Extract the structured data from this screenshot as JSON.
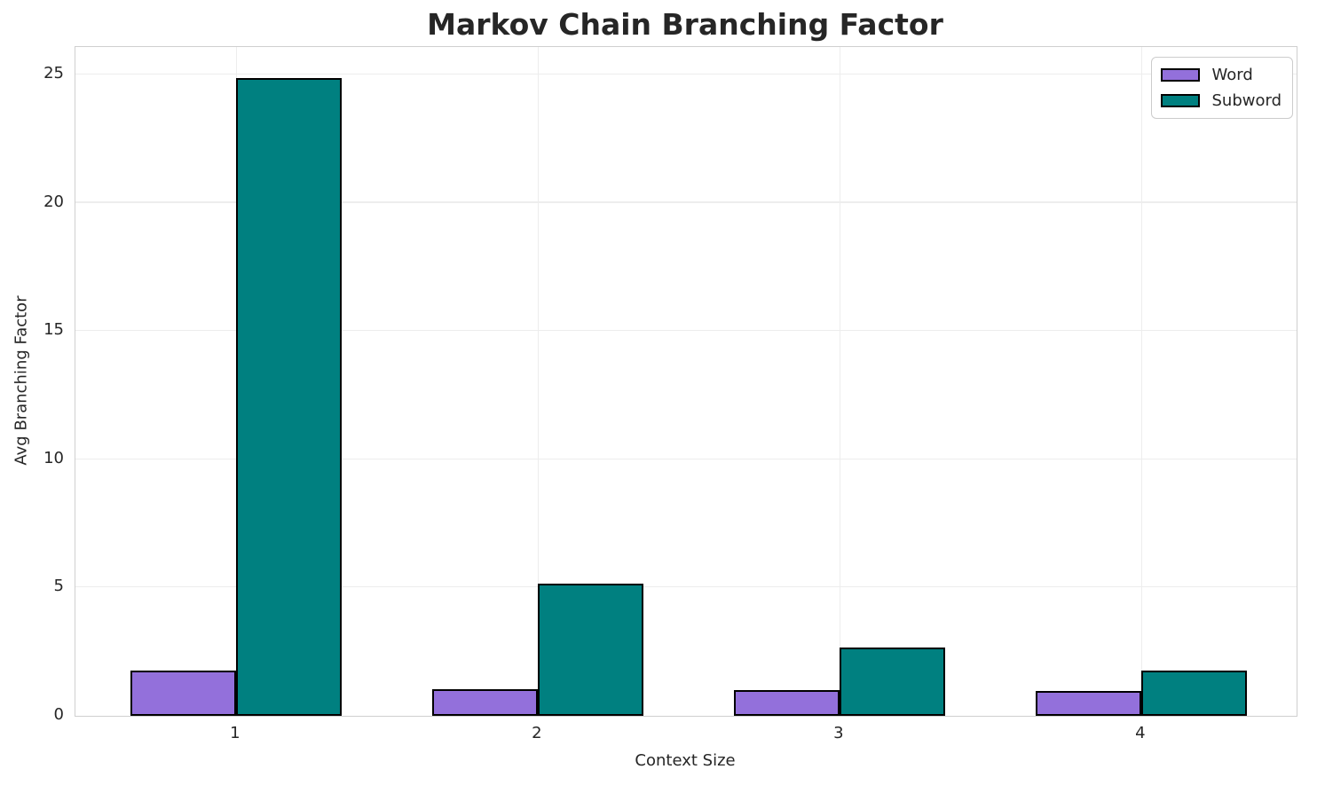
{
  "chart_data": {
    "type": "bar",
    "title": "Markov Chain Branching Factor",
    "xlabel": "Context Size",
    "ylabel": "Avg Branching Factor",
    "categories": [
      "1",
      "2",
      "3",
      "4"
    ],
    "series": [
      {
        "name": "Word",
        "color": "#9370DB",
        "values": [
          1.75,
          1.05,
          1.0,
          0.97
        ]
      },
      {
        "name": "Subword",
        "color": "#008080",
        "values": [
          24.85,
          5.15,
          2.65,
          1.75
        ]
      }
    ],
    "yticks": [
      0,
      5,
      10,
      15,
      20,
      25
    ],
    "ylim": [
      0,
      26.07
    ],
    "xlim": [
      -0.532,
      3.515
    ],
    "bar_width": 0.35,
    "bar_edge_color": "#000000",
    "grid": true,
    "grid_color": "#ededed",
    "spine_color": "#cfcfcf",
    "text_color": "#262626",
    "legend_position": "upper right"
  }
}
